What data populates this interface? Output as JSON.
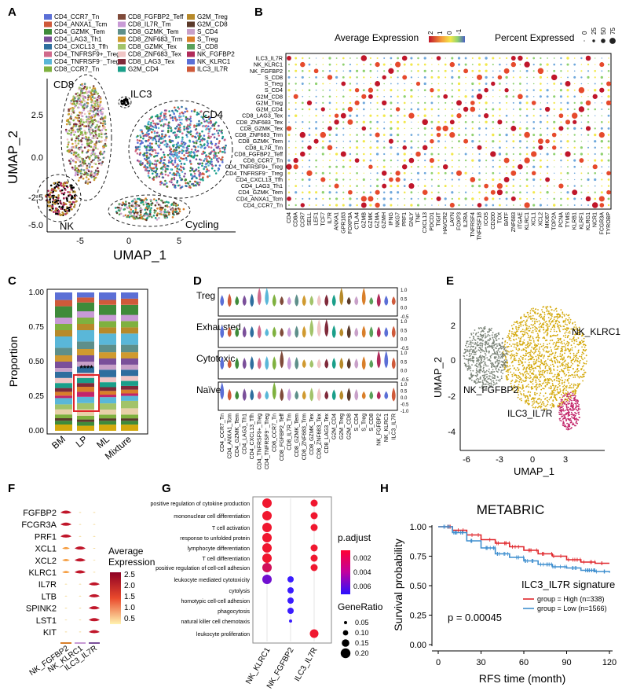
{
  "panels": {
    "A": "A",
    "B": "B",
    "C": "C",
    "D": "D",
    "E": "E",
    "F": "F",
    "G": "G",
    "H": "H"
  },
  "colors": {
    "clusters": [
      "#5b6fd6",
      "#cf5a3a",
      "#3f8b3a",
      "#7a4f9a",
      "#2f6e9e",
      "#d06a8c",
      "#5ab7d8",
      "#7fb13f",
      "#7f4a3a",
      "#c89ad6",
      "#5e8f8a",
      "#d09a2f",
      "#a2c36a",
      "#f0c5c5",
      "#7f2a3a",
      "#1a9f8a",
      "#b78a2a",
      "#5b3a2a",
      "#c8a0c8",
      "#d97f2a",
      "#5aa05a",
      "#b02a5a"
    ],
    "nk_klrc1": "#d4a90c",
    "nk_fgfbp2": "#7a8378",
    "ilc3": "#c2256a",
    "high": "#e0262b",
    "low": "#3f8fcf"
  },
  "panel_a": {
    "legend": [
      "CD4_CCR7_Tn",
      "CD4_ANXA1_Tcm",
      "CD4_GZMK_Tem",
      "CD4_LAG3_Th1",
      "CD4_CXCL13_Tfh",
      "CD4_TNFRSF9+_Treg",
      "CD4_TNFRSF9⁻_Treg",
      "CD8_CCR7_Tn",
      "CD8_FGFBP2_Teff",
      "CD8_IL7R_Tm",
      "CD8_GZMK_Tem",
      "CD8_ZNF683_Trm",
      "CD8_GZMK_Tex",
      "CD8_ZNF683_Tex",
      "CD8_LAG3_Tex",
      "G2M_CD4",
      "G2M_Treg",
      "G2M_CD8",
      "S_CD4",
      "S_Treg",
      "S_CD8",
      "NK_FGFBP2",
      "NK_KLRC1",
      "ILC3_IL7R"
    ],
    "region_labels": {
      "cd8": "CD8",
      "ilc3": "ILC3",
      "cd4": "CD4",
      "nk": "NK",
      "cycling": "Cycling"
    },
    "xlabel": "UMAP_1",
    "ylabel": "UMAP_2",
    "xticks": [
      "-5",
      "0",
      "5"
    ],
    "yticks": [
      "2.5",
      "0.0",
      "-2.5",
      "-5.0"
    ]
  },
  "panel_b": {
    "legend_title_expr": "Average Expression",
    "legend_title_pct": "Percent Expressed",
    "expr_ticks": [
      "2",
      "1",
      "0",
      "-1"
    ],
    "pct_ticks": [
      "0",
      "25",
      "50",
      "75"
    ],
    "rows": [
      "ILC3_IL7R",
      "NK_KLRC1",
      "NK_FGFBP2",
      "S_CD8",
      "S_Treg",
      "S_CD4",
      "G2M_CD8",
      "G2M_Treg",
      "G2M_CD4",
      "CD8_LAG3_Tex",
      "CD8_ZNF683_Tex",
      "CD8_GZMK_Tex",
      "CD8_ZNF683_Trm",
      "CD8_GZMK_Tem",
      "CD8_IL7R_Tm",
      "CD8_FGFBP2_Teff",
      "CD8_CCR7_Tn",
      "CD4_TNFRSF9+_Treg",
      "CD4_TNFRSF9⁻_Treg",
      "CD4_CXCL13_Tfh",
      "CD4_LAG3_Th1",
      "CD4_GZMK_Tem",
      "CD4_ANXA1_Tcm",
      "CD4_CCR7_Tn"
    ],
    "genes": [
      "CD4",
      "CD8A",
      "CCR7",
      "SELL",
      "LEF1",
      "TCF7",
      "IL7R",
      "ANXA1",
      "GPR183",
      "FOXP3A",
      "CTLA4",
      "GZMB",
      "GZMK",
      "GZMA",
      "GZMH",
      "IFNG",
      "NKG7",
      "PRF1",
      "GNLY",
      "TNF",
      "CXCL13",
      "PDCD1",
      "TIGIT",
      "HAVCR2",
      "LAYN",
      "FOXP3",
      "IL2RA",
      "TNFRSF4",
      "TNFRSF18",
      "ICOS",
      "CD200",
      "TOX",
      "BATF",
      "ZNF683",
      "ITGAE",
      "KLRC1",
      "XCL1",
      "XCL2",
      "MKI67",
      "TOP2A",
      "PCNA",
      "TYMS",
      "KLRB1",
      "KLRF1",
      "KLRG1",
      "NCR1",
      "FCGR3A",
      "TYROBP"
    ]
  },
  "panel_c": {
    "ylabel": "Proportion",
    "yticks": [
      "0.00",
      "0.25",
      "0.50",
      "0.75",
      "1.00"
    ],
    "groups": [
      "BM",
      "LP",
      "ML",
      "Mixture"
    ],
    "significance": "****",
    "segment_colors": [
      "#d4a90c",
      "#3f8b3a",
      "#5b3a2a",
      "#7fb13f",
      "#e8d0a8",
      "#a2c36a",
      "#5ab7d8",
      "#c2256a",
      "#d97f2a",
      "#7f2a3a",
      "#1a9f8a",
      "#f0c5c5",
      "#2f6e9e",
      "#c8a0c8",
      "#7a4f9a",
      "#d09a2f",
      "#5e8f8a",
      "#5ab7d8",
      "#b78a2a",
      "#7fb13f",
      "#c89ad6",
      "#3f8b3a",
      "#cf5a3a",
      "#5b6fd6"
    ],
    "stacks": [
      [
        0.05,
        0.03,
        0.02,
        0.03,
        0.04,
        0.04,
        0.05,
        0.02,
        0.03,
        0.03,
        0.04,
        0.04,
        0.05,
        0.03,
        0.05,
        0.05,
        0.06,
        0.09,
        0.05,
        0.05,
        0.05,
        0.09,
        0.05,
        0.06
      ],
      [
        0.04,
        0.03,
        0.02,
        0.03,
        0.05,
        0.05,
        0.05,
        0.04,
        0.04,
        0.03,
        0.04,
        0.04,
        0.05,
        0.04,
        0.05,
        0.05,
        0.06,
        0.09,
        0.05,
        0.05,
        0.05,
        0.07,
        0.04,
        0.04
      ],
      [
        0.05,
        0.03,
        0.02,
        0.03,
        0.04,
        0.05,
        0.05,
        0.02,
        0.03,
        0.03,
        0.04,
        0.04,
        0.06,
        0.04,
        0.05,
        0.05,
        0.06,
        0.09,
        0.05,
        0.05,
        0.05,
        0.08,
        0.04,
        0.06
      ],
      [
        0.05,
        0.03,
        0.02,
        0.03,
        0.05,
        0.06,
        0.04,
        0.02,
        0.03,
        0.03,
        0.04,
        0.04,
        0.05,
        0.04,
        0.05,
        0.05,
        0.06,
        0.09,
        0.05,
        0.05,
        0.05,
        0.08,
        0.05,
        0.05
      ]
    ]
  },
  "panel_d": {
    "signatures": [
      "Treg",
      "Exhausted",
      "Cytotoxic",
      "Naïve"
    ],
    "yticks": [
      "1.0",
      "0.5",
      "0.0",
      "-0.5"
    ],
    "naive_yticks": [
      "1.0",
      "0.5",
      "0.0",
      "-0.5",
      "-1.0"
    ],
    "cell_types": [
      "CD4_CCR7_Tn",
      "CD4_ANXA1_Tcm",
      "CD4_GZMK_Tem",
      "CD4_LAG3_Th1",
      "CD4_CXCL13_Tfh",
      "CD4_TNFRSF9+_Treg",
      "CD4_TNFRSF9⁻_Treg",
      "CD8_CCR7_Tn",
      "CD8_FGFBP2_Teff",
      "CD8_IL7R_Tm",
      "CD8_GZMK_Tem",
      "CD8_ZNF683_Trm",
      "CD8_GZMK_Tex",
      "CD8_ZNF683_Tex",
      "CD8_LAG3_Tex",
      "G2M_CD4",
      "G2M_Treg",
      "G2M_CD8",
      "S_CD4",
      "S_Treg",
      "S_CD8",
      "NK_FGFBP2",
      "NK_KLRC1",
      "ILC3_IL7R"
    ]
  },
  "panel_e": {
    "xlabel": "UMAP_1",
    "ylabel": "UMAP_2",
    "xticks": [
      "-6",
      "-3",
      "0",
      "3"
    ],
    "yticks": [
      "2",
      "0",
      "-2",
      "-4"
    ],
    "labels": {
      "klrc1": "NK_KLRC1",
      "fgfbp2": "NK_FGFBP2",
      "ilc3": "ILC3_IL7R"
    }
  },
  "panel_f": {
    "genes": [
      "FGFBP2",
      "FCGR3A",
      "PRF1",
      "XCL1",
      "XCL2",
      "KLRC1",
      "IL7R",
      "LTB",
      "SPINK2",
      "LST1",
      "KIT"
    ],
    "groups": [
      "NK_FGFBP2",
      "NK_KLRC1",
      "ILC3_IL7R"
    ],
    "legend_title": "Average Expression",
    "legend_ticks": [
      "2.5",
      "2.0",
      "1.5",
      "1.0",
      "0.5"
    ]
  },
  "panel_g": {
    "terms": [
      "positive regulation of cytokine production",
      "mononuclear cell differentiation",
      "T cell activation",
      "response to unfolded protein",
      "lymphocyte differentiation",
      "T cell differentiation",
      "positive regulation of cell-cell adhesion",
      "leukocyte mediated cytotoxicity",
      "cytolysis",
      "homotypic cell-cell adhesion",
      "phagocytosis",
      "natural killer cell chemotaxis",
      "leukocyte proliferation"
    ],
    "groups": [
      "NK_KLRC1",
      "NK_FGFBP2",
      "ILC3_IL7R"
    ],
    "padj_title": "p.adjust",
    "padj_ticks": [
      "0.002",
      "0.004",
      "0.006"
    ],
    "gr_title": "GeneRatio",
    "gr_ticks": [
      "0.05",
      "0.10",
      "0.15",
      "0.20"
    ]
  },
  "chart_data": {
    "type": "line",
    "title": "METABRIC",
    "xlabel": "RFS time (month)",
    "ylabel": "Survival probability",
    "xticks": [
      "0",
      "30",
      "60",
      "90",
      "120"
    ],
    "yticks": [
      "0.00",
      "0.25",
      "0.50",
      "0.75",
      "1.00"
    ],
    "xlim": [
      0,
      120
    ],
    "ylim": [
      0,
      1
    ],
    "annotation": "p = 0.00045",
    "legend_title": "ILC3_IL7R signature",
    "series": [
      {
        "name": "group = High (n=338)",
        "x": [
          0,
          10,
          20,
          30,
          40,
          50,
          60,
          70,
          80,
          90,
          100,
          110,
          120
        ],
        "values": [
          1.0,
          0.97,
          0.93,
          0.89,
          0.86,
          0.83,
          0.8,
          0.77,
          0.75,
          0.72,
          0.7,
          0.69,
          0.69
        ]
      },
      {
        "name": "group = Low (n=1566)",
        "x": [
          0,
          10,
          20,
          30,
          40,
          50,
          60,
          70,
          80,
          90,
          100,
          110,
          120
        ],
        "values": [
          1.0,
          0.95,
          0.88,
          0.82,
          0.77,
          0.74,
          0.71,
          0.68,
          0.66,
          0.65,
          0.63,
          0.62,
          0.61
        ]
      }
    ]
  }
}
